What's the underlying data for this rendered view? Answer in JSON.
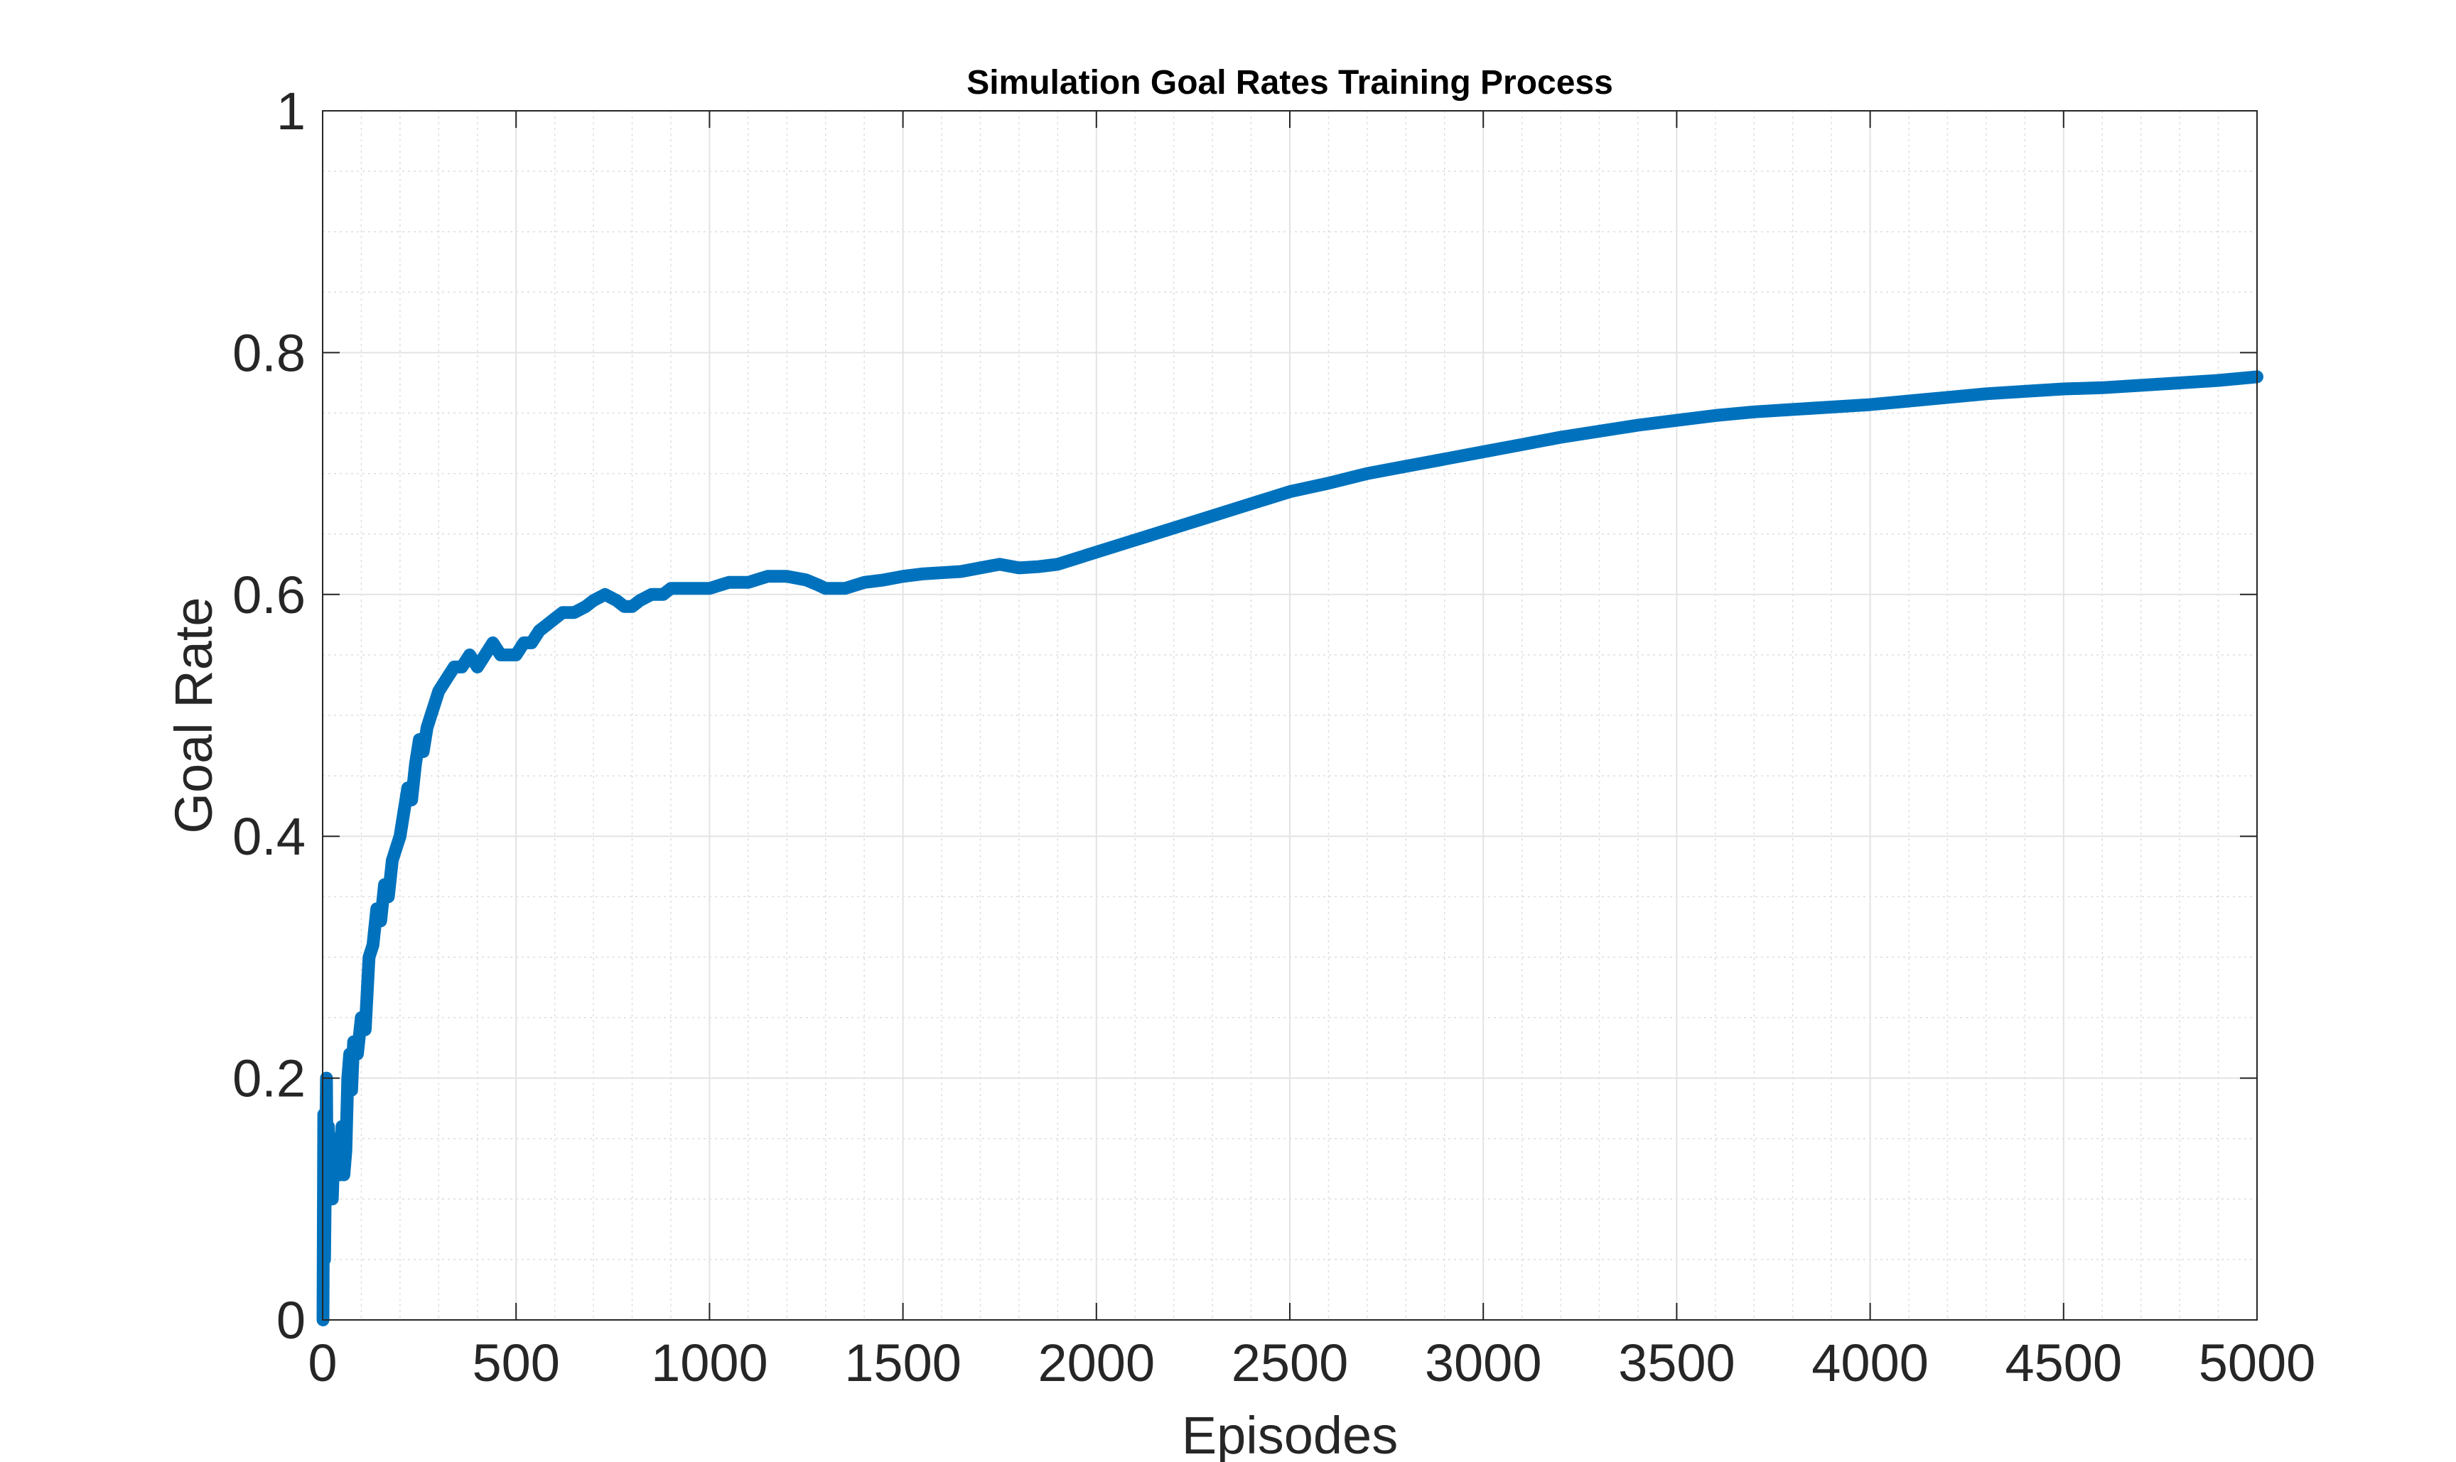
{
  "chart_data": {
    "type": "line",
    "title": "Simulation Goal Rates Training Process",
    "xlabel": "Episodes",
    "ylabel": "Goal Rate",
    "xlim": [
      0,
      5000
    ],
    "ylim": [
      0,
      1
    ],
    "xticks": [
      0,
      500,
      1000,
      1500,
      2000,
      2500,
      3000,
      3500,
      4000,
      4500,
      5000
    ],
    "xtick_labels": [
      "0",
      "500",
      "1000",
      "1500",
      "2000",
      "2500",
      "3000",
      "3500",
      "4000",
      "4500",
      "5000"
    ],
    "yticks": [
      0,
      0.2,
      0.4,
      0.6,
      0.8,
      1
    ],
    "ytick_labels": [
      "0",
      "0.2",
      "0.4",
      "0.6",
      "0.8",
      "1"
    ],
    "grid": true,
    "minor_grid": true,
    "legend": false,
    "series": [
      {
        "color": "#0072BD",
        "x": [
          1,
          3,
          5,
          8,
          10,
          12,
          15,
          18,
          20,
          25,
          30,
          35,
          40,
          45,
          50,
          55,
          60,
          65,
          70,
          75,
          80,
          90,
          100,
          110,
          120,
          130,
          140,
          150,
          160,
          170,
          180,
          190,
          200,
          210,
          220,
          230,
          240,
          250,
          260,
          270,
          280,
          290,
          300,
          320,
          340,
          360,
          380,
          400,
          420,
          440,
          460,
          480,
          500,
          520,
          540,
          560,
          580,
          600,
          620,
          650,
          680,
          700,
          730,
          760,
          780,
          800,
          820,
          850,
          880,
          900,
          950,
          1000,
          1050,
          1100,
          1150,
          1200,
          1250,
          1280,
          1300,
          1350,
          1400,
          1450,
          1500,
          1550,
          1600,
          1650,
          1700,
          1750,
          1800,
          1850,
          1900,
          2000,
          2100,
          2200,
          2300,
          2400,
          2500,
          2600,
          2700,
          2800,
          2900,
          3000,
          3100,
          3200,
          3300,
          3400,
          3500,
          3600,
          3700,
          3800,
          3900,
          4000,
          4100,
          4200,
          4300,
          4400,
          4500,
          4600,
          4700,
          4800,
          4900,
          5000
        ],
        "y": [
          0.0,
          0.17,
          0.05,
          0.15,
          0.2,
          0.1,
          0.16,
          0.12,
          0.14,
          0.1,
          0.15,
          0.13,
          0.15,
          0.12,
          0.16,
          0.12,
          0.14,
          0.2,
          0.22,
          0.19,
          0.23,
          0.22,
          0.25,
          0.24,
          0.3,
          0.31,
          0.34,
          0.33,
          0.36,
          0.35,
          0.38,
          0.39,
          0.4,
          0.42,
          0.44,
          0.43,
          0.46,
          0.48,
          0.47,
          0.49,
          0.5,
          0.51,
          0.52,
          0.53,
          0.54,
          0.54,
          0.55,
          0.54,
          0.55,
          0.56,
          0.55,
          0.55,
          0.55,
          0.56,
          0.56,
          0.57,
          0.575,
          0.58,
          0.585,
          0.585,
          0.59,
          0.595,
          0.6,
          0.595,
          0.59,
          0.59,
          0.595,
          0.6,
          0.6,
          0.605,
          0.605,
          0.605,
          0.61,
          0.61,
          0.615,
          0.615,
          0.612,
          0.608,
          0.605,
          0.605,
          0.61,
          0.612,
          0.615,
          0.617,
          0.618,
          0.619,
          0.622,
          0.625,
          0.622,
          0.623,
          0.625,
          0.635,
          0.645,
          0.655,
          0.665,
          0.675,
          0.685,
          0.692,
          0.7,
          0.706,
          0.712,
          0.718,
          0.724,
          0.73,
          0.735,
          0.74,
          0.744,
          0.748,
          0.751,
          0.753,
          0.755,
          0.757,
          0.76,
          0.763,
          0.766,
          0.768,
          0.77,
          0.771,
          0.773,
          0.775,
          0.777,
          0.78
        ]
      }
    ]
  }
}
